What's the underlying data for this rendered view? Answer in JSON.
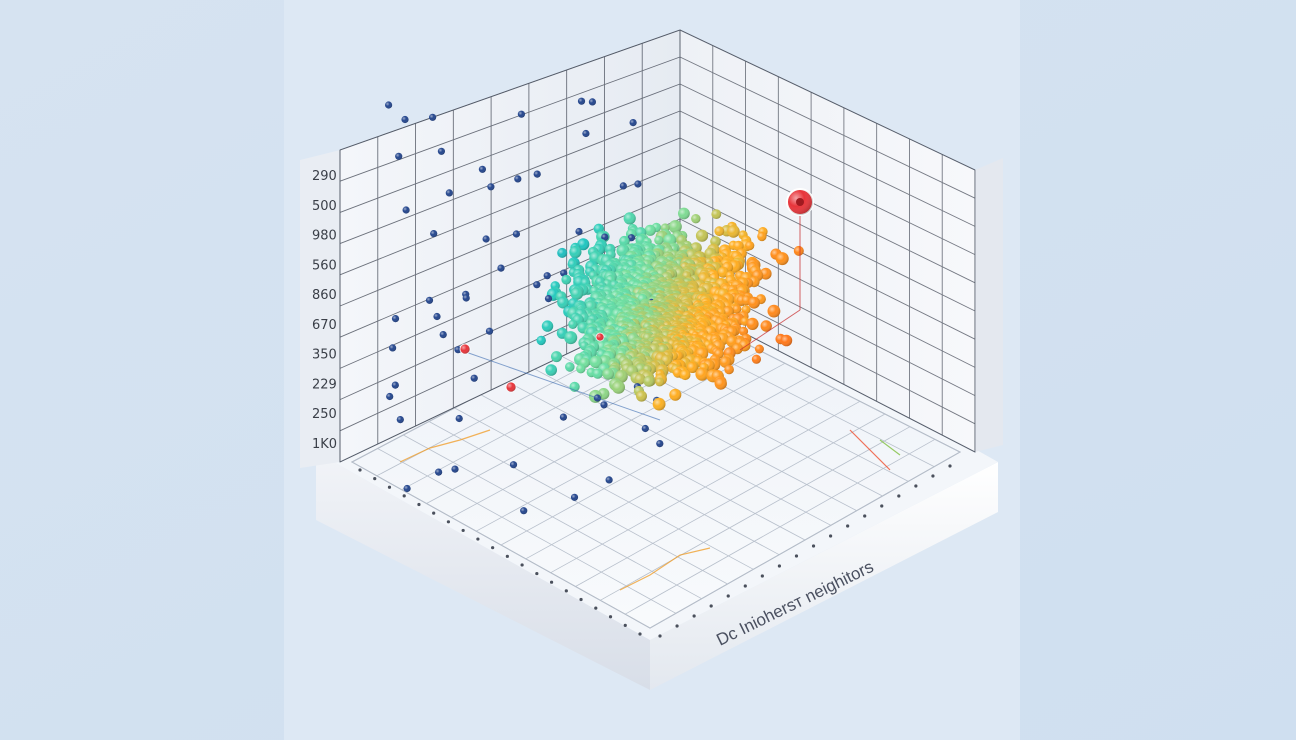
{
  "chart_data": {
    "type": "scatter",
    "dimensions": 3,
    "title": "",
    "caption": "Dc Iniohersт neighitors",
    "y_tick_labels": [
      "290",
      "500",
      "980",
      "560",
      "860",
      "670",
      "350",
      "229",
      "250",
      "1K0"
    ],
    "grid": true,
    "colormap": [
      "#1f2f6e",
      "#2a5fb0",
      "#1fc8c0",
      "#6fe0a0",
      "#ffb020",
      "#ff7a1a",
      "#f03030"
    ],
    "highlight_color": "#e8343a",
    "n_points": 1400,
    "highlighted_points": 4
  }
}
